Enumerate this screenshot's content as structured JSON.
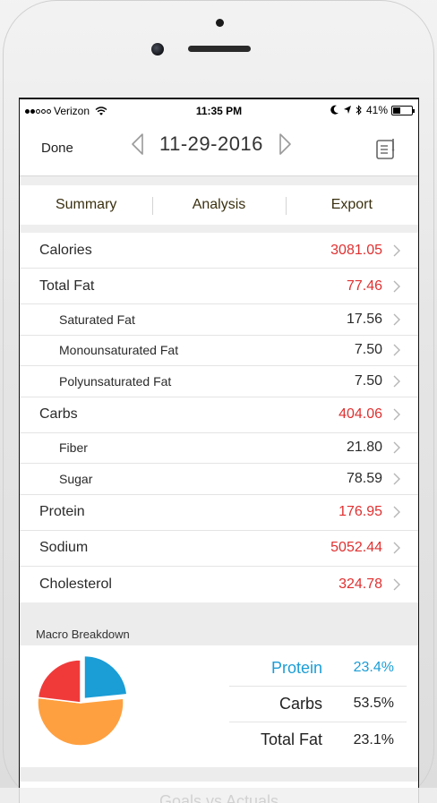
{
  "status_bar": {
    "carrier": "Verizon",
    "time": "11:35 PM",
    "battery": "41%",
    "battery_level": 0.41
  },
  "nav": {
    "done_label": "Done",
    "date": "11-29-2016"
  },
  "tabs": [
    {
      "label": "Summary"
    },
    {
      "label": "Analysis"
    },
    {
      "label": "Export"
    }
  ],
  "nutrients": [
    {
      "name": "Calories",
      "value": "3081.05",
      "level": "major",
      "color": "#e03030"
    },
    {
      "name": "Total Fat",
      "value": "77.46",
      "level": "major",
      "color": "#e03030"
    },
    {
      "name": "Saturated Fat",
      "value": "17.56",
      "level": "minor",
      "color": "#2a2a2a"
    },
    {
      "name": "Monounsaturated Fat",
      "value": "7.50",
      "level": "minor",
      "color": "#2a2a2a"
    },
    {
      "name": "Polyunsaturated Fat",
      "value": "7.50",
      "level": "minor",
      "color": "#2a2a2a"
    },
    {
      "name": "Carbs",
      "value": "404.06",
      "level": "major",
      "color": "#e03030"
    },
    {
      "name": "Fiber",
      "value": "21.80",
      "level": "minor",
      "color": "#2a2a2a"
    },
    {
      "name": "Sugar",
      "value": "78.59",
      "level": "minor",
      "color": "#2a2a2a"
    },
    {
      "name": "Protein",
      "value": "176.95",
      "level": "major",
      "color": "#e03030"
    },
    {
      "name": "Sodium",
      "value": "5052.44",
      "level": "major",
      "color": "#e03030"
    },
    {
      "name": "Cholesterol",
      "value": "324.78",
      "level": "major",
      "color": "#e03030"
    }
  ],
  "macro_breakdown": {
    "header": "Macro Breakdown",
    "rows": [
      {
        "name": "Protein",
        "pct": "23.4%",
        "active": true
      },
      {
        "name": "Carbs",
        "pct": "53.5%",
        "active": false
      },
      {
        "name": "Total Fat",
        "pct": "23.1%",
        "active": false
      }
    ]
  },
  "chart_data": {
    "type": "pie",
    "categories": [
      "Protein",
      "Carbs",
      "Total Fat"
    ],
    "values": [
      23.4,
      53.5,
      23.1
    ],
    "colors": [
      "#1b9dd6",
      "#ffa040",
      "#f03a3a"
    ],
    "exploded": "Protein"
  },
  "goals": {
    "label": "Goals vs Actuals"
  },
  "colors": {
    "accent_blue": "#1b9dd6",
    "value_red": "#e03030"
  }
}
